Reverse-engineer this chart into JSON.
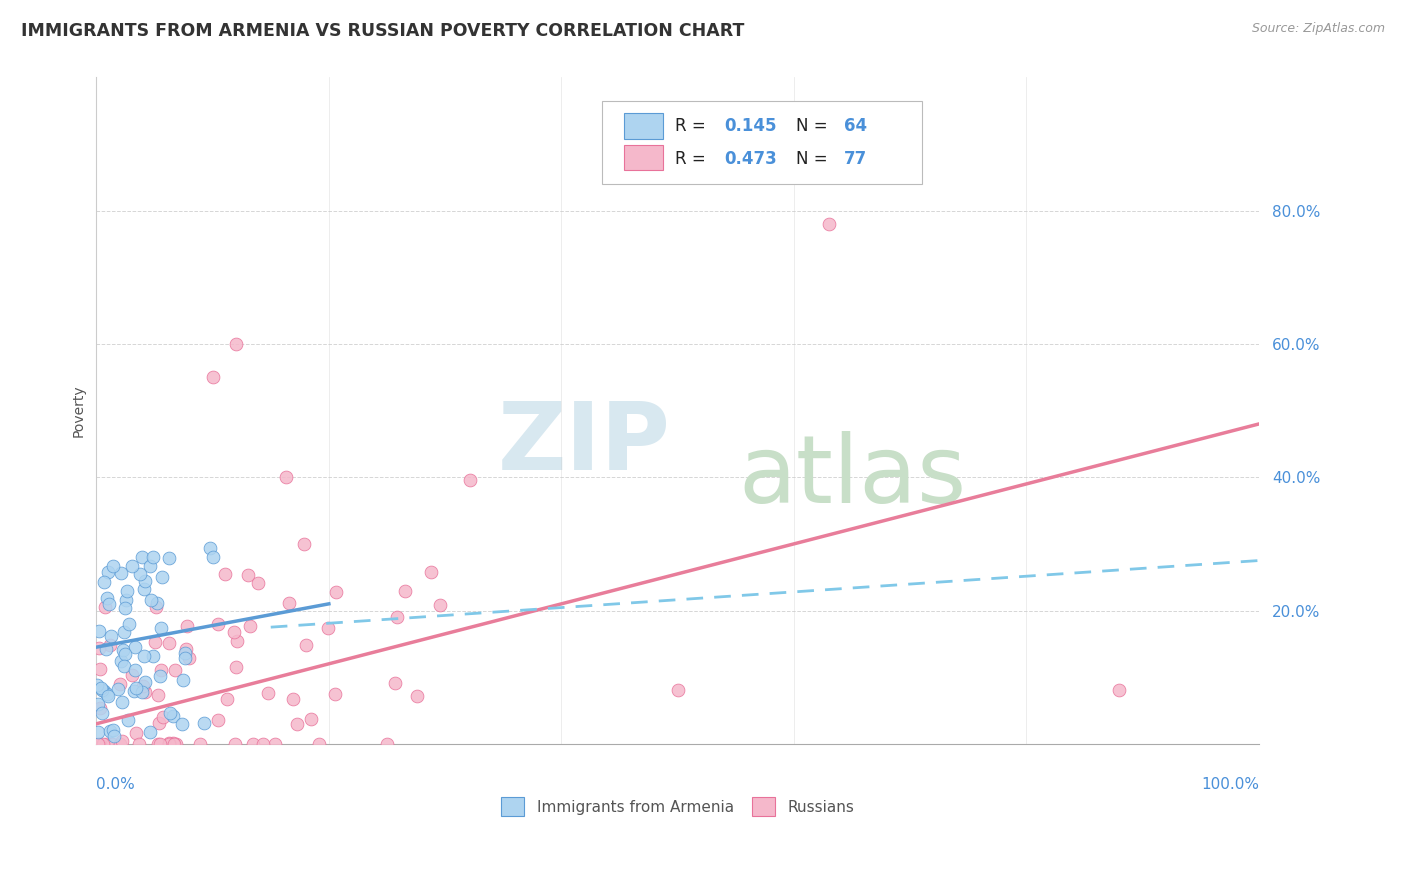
{
  "title": "IMMIGRANTS FROM ARMENIA VS RUSSIAN POVERTY CORRELATION CHART",
  "source": "Source: ZipAtlas.com",
  "ylabel": "Poverty",
  "legend_label1": "Immigrants from Armenia",
  "legend_label2": "Russians",
  "r1": 0.145,
  "n1": 64,
  "r2": 0.473,
  "n2": 77,
  "color_blue": "#aed4f0",
  "color_pink": "#f5b8cb",
  "color_blue_line": "#5b9bd5",
  "color_pink_line": "#e87d9a",
  "color_blue_dark": "#4a90d9",
  "color_pink_dark": "#e8729a",
  "color_dashed": "#80c8e8",
  "background_color": "#ffffff",
  "grid_color": "#cccccc",
  "title_color": "#333333",
  "axis_label_color": "#4a90d9",
  "watermark_zip_color": "#d8e8f0",
  "watermark_atlas_color": "#c8dfc8",
  "xlim": [
    0,
    100
  ],
  "ylim": [
    0,
    100
  ],
  "blue_line_x0": 0,
  "blue_line_x1": 20,
  "blue_line_y0": 14.5,
  "blue_line_y1": 21.0,
  "pink_line_x0": 0,
  "pink_line_x1": 100,
  "pink_line_y0": 3.0,
  "pink_line_y1": 48.0,
  "dashed_line_x0": 15,
  "dashed_line_x1": 100,
  "dashed_line_y0": 17.5,
  "dashed_line_y1": 27.5,
  "blue_seed": 77,
  "pink_seed": 33
}
